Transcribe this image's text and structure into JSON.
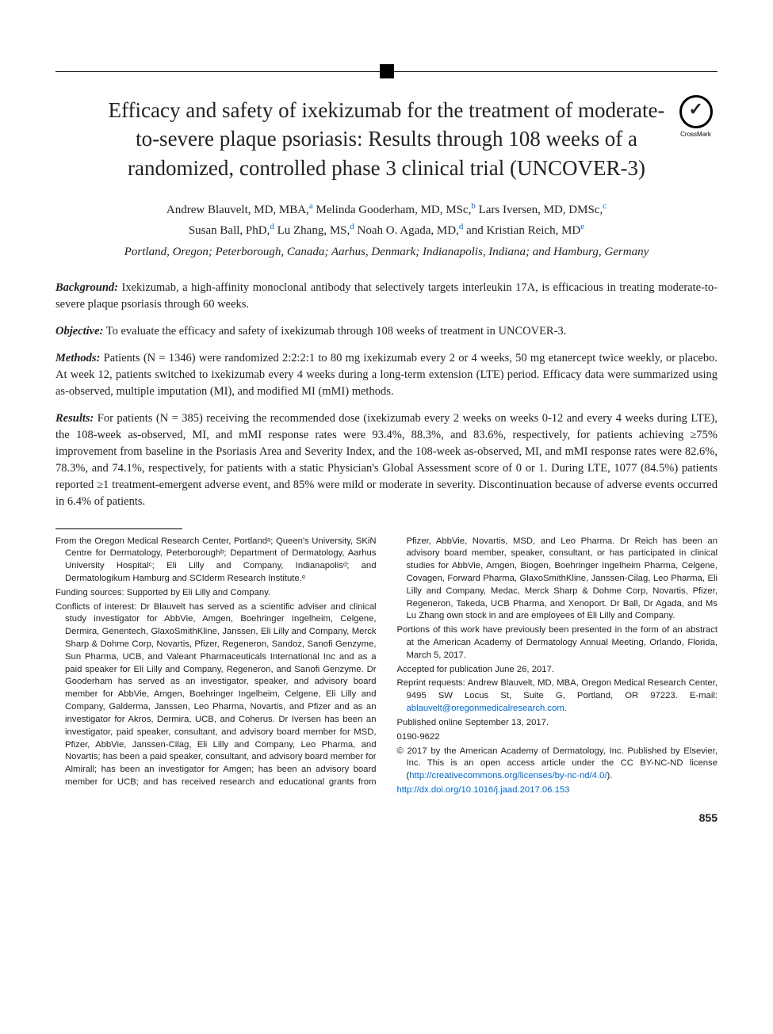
{
  "title": "Efficacy and safety of ixekizumab for the treatment of moderate-to-severe plaque psoriasis: Results through 108 weeks of a randomized, controlled phase 3 clinical trial (UNCOVER-3)",
  "crossmark_label": "CrossMark",
  "authors": [
    {
      "name": "Andrew Blauvelt, MD, MBA,",
      "aff": "a"
    },
    {
      "name": "Melinda Gooderham, MD, MSc,",
      "aff": "b"
    },
    {
      "name": "Lars Iversen, MD, DMSc,",
      "aff": "c"
    },
    {
      "name": "Susan Ball, PhD,",
      "aff": "d"
    },
    {
      "name": "Lu Zhang, MS,",
      "aff": "d"
    },
    {
      "name": "Noah O. Agada, MD,",
      "aff": "d"
    },
    {
      "name": "and Kristian Reich, MD",
      "aff": "e"
    }
  ],
  "affiliations": "Portland, Oregon; Peterborough, Canada; Aarhus, Denmark; Indianapolis, Indiana; and Hamburg, Germany",
  "abstract": {
    "background": {
      "label": "Background:",
      "text": "Ixekizumab, a high-affinity monoclonal antibody that selectively targets interleukin 17A, is efficacious in treating moderate-to-severe plaque psoriasis through 60 weeks."
    },
    "objective": {
      "label": "Objective:",
      "text": "To evaluate the efficacy and safety of ixekizumab through 108 weeks of treatment in UNCOVER-3."
    },
    "methods": {
      "label": "Methods:",
      "text": "Patients (N = 1346) were randomized 2:2:2:1 to 80 mg ixekizumab every 2 or 4 weeks, 50 mg etanercept twice weekly, or placebo. At week 12, patients switched to ixekizumab every 4 weeks during a long-term extension (LTE) period. Efficacy data were summarized using as-observed, multiple imputation (MI), and modified MI (mMI) methods."
    },
    "results": {
      "label": "Results:",
      "text": "For patients (N = 385) receiving the recommended dose (ixekizumab every 2 weeks on weeks 0-12 and every 4 weeks during LTE), the 108-week as-observed, MI, and mMI response rates were 93.4%, 88.3%, and 83.6%, respectively, for patients achieving ≥75% improvement from baseline in the Psoriasis Area and Severity Index, and the 108-week as-observed, MI, and mMI response rates were 82.6%, 78.3%, and 74.1%, respectively, for patients with a static Physician's Global Assessment score of 0 or 1. During LTE, 1077 (84.5%) patients reported ≥1 treatment-emergent adverse event, and 85% were mild or moderate in severity. Discontinuation because of adverse events occurred in 6.4% of patients."
    }
  },
  "footnotes": {
    "from": "From the Oregon Medical Research Center, Portlandᵃ; Queen's University, SKiN Centre for Dermatology, Peterboroughᵇ; Department of Dermatology, Aarhus University Hospitalᶜ; Eli Lilly and Company, Indianapolisᵈ; and Dermatologikum Hamburg and SCIderm Research Institute.ᵉ",
    "funding": "Funding sources: Supported by Eli Lilly and Company.",
    "conflicts": "Conflicts of interest: Dr Blauvelt has served as a scientific adviser and clinical study investigator for AbbVie, Amgen, Boehringer Ingelheim, Celgene, Dermira, Genentech, GlaxoSmithKline, Janssen, Eli Lilly and Company, Merck Sharp & Dohme Corp, Novartis, Pfizer, Regeneron, Sandoz, Sanofi Genzyme, Sun Pharma, UCB, and Valeant Pharmaceuticals International Inc and as a paid speaker for Eli Lilly and Company, Regeneron, and Sanofi Genzyme. Dr Gooderham has served as an investigator, speaker, and advisory board member for AbbVie, Amgen, Boehringer Ingelheim, Celgene, Eli Lilly and Company, Galderma, Janssen, Leo Pharma, Novartis, and Pfizer and as an investigator for Akros, Dermira, UCB, and Coherus. Dr Iversen has been an investigator, paid speaker, consultant, and advisory board member for MSD, Pfizer, AbbVie, Janssen-Cilag, Eli Lilly and Company, Leo Pharma, and Novartis; has been a paid speaker, consultant, and advisory board member for Almirall; has been an investigator for Amgen; has been an advisory board member for UCB; and has received research and educational grants from Pfizer, AbbVie, Novartis, MSD, and Leo Pharma. Dr Reich has been an advisory board member, speaker, consultant, or has participated in clinical studies for AbbVie, Amgen, Biogen, Boehringer Ingelheim Pharma, Celgene, Covagen, Forward Pharma, GlaxoSmithKline, Janssen-Cilag, Leo Pharma, Eli Lilly and Company, Medac, Merck Sharp & Dohme Corp, Novartis, Pfizer, Regeneron, Takeda, UCB Pharma, and Xenoport. Dr Ball, Dr Agada, and Ms Lu Zhang own stock in and are employees of Eli Lilly and Company.",
    "presented": "Portions of this work have previously been presented in the form of an abstract at the American Academy of Dermatology Annual Meeting, Orlando, Florida, March 5, 2017.",
    "accepted": "Accepted for publication June 26, 2017.",
    "reprint_pre": "Reprint requests: Andrew Blauvelt, MD, MBA, Oregon Medical Research Center, 9495 SW Locus St, Suite G, Portland, OR 97223. E-mail: ",
    "reprint_email": "ablauvelt@oregonmedicalresearch.com",
    "reprint_post": ".",
    "published": "Published online September 13, 2017.",
    "issn": "0190-9622",
    "copyright_pre": "© 2017 by the American Academy of Dermatology, Inc. Published by Elsevier, Inc. This is an open access article under the CC BY-NC-ND license (",
    "cc_url": "http://creativecommons.org/licenses/by-nc-nd/4.0/",
    "copyright_post": ").",
    "doi": "http://dx.doi.org/10.1016/j.jaad.2017.06.153"
  },
  "page_number": "855",
  "colors": {
    "link": "#0066cc",
    "text": "#222222",
    "background": "#ffffff",
    "rule": "#000000"
  },
  "typography": {
    "title_fontsize": 27,
    "body_fontsize": 14.5,
    "footnote_fontsize": 11.3,
    "author_fontsize": 15,
    "body_font": "Georgia/serif",
    "footnote_font": "Arial/sans-serif"
  }
}
